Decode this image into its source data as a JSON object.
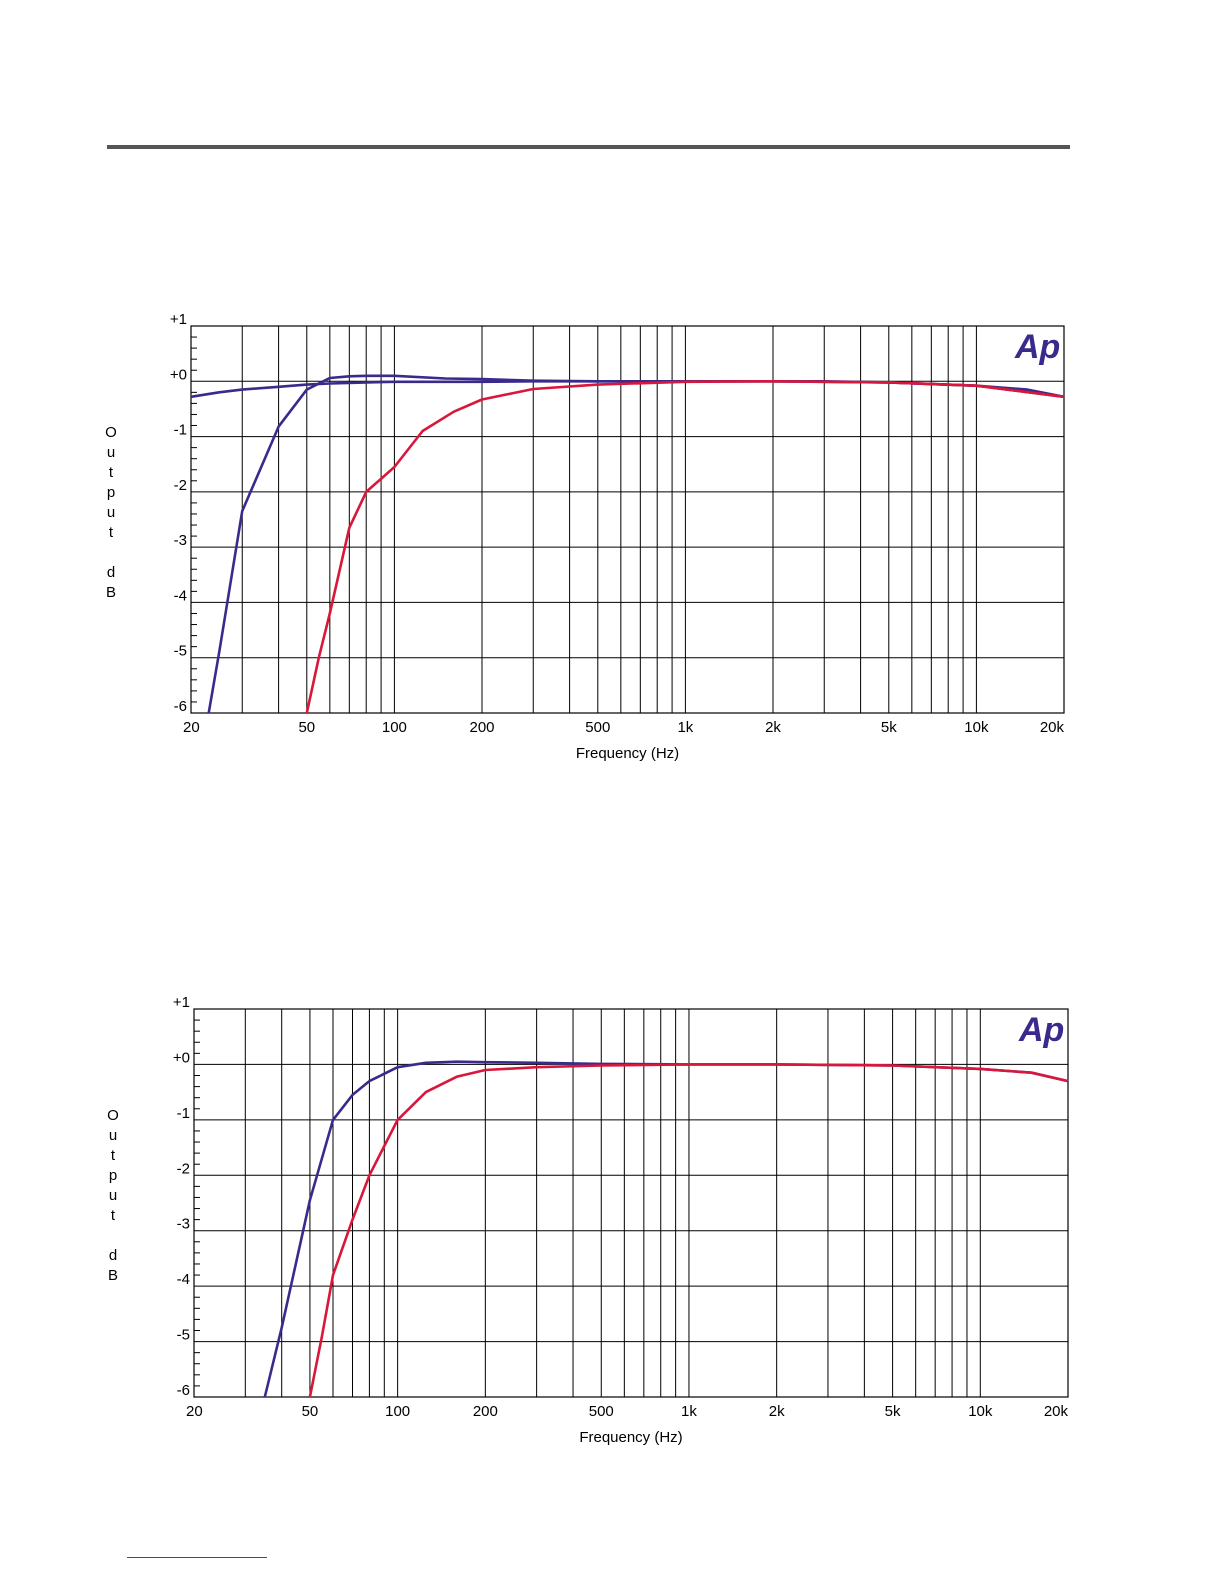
{
  "colors": {
    "grid": "#000000",
    "series_a": "#3b2a8c",
    "series_b": "#d9173a",
    "logo": "#3b2a8c"
  },
  "chart_data": [
    {
      "type": "line",
      "logo_text": "Ap",
      "xscale": "log",
      "xlim": [
        20,
        20000
      ],
      "ylim": [
        -6,
        1
      ],
      "ylabel": "Output dB",
      "xlabel": "Frequency (Hz)",
      "x_ticks": [
        {
          "value": 20,
          "label": "20"
        },
        {
          "value": 50,
          "label": "50"
        },
        {
          "value": 100,
          "label": "100"
        },
        {
          "value": 200,
          "label": "200"
        },
        {
          "value": 500,
          "label": "500"
        },
        {
          "value": 1000,
          "label": "1k"
        },
        {
          "value": 2000,
          "label": "2k"
        },
        {
          "value": 5000,
          "label": "5k"
        },
        {
          "value": 10000,
          "label": "10k"
        },
        {
          "value": 20000,
          "label": "20k"
        }
      ],
      "y_ticks": [
        {
          "value": 1,
          "label": "+1"
        },
        {
          "value": 0,
          "label": "+0"
        },
        {
          "value": -1,
          "label": "-1"
        },
        {
          "value": -2,
          "label": "-2"
        },
        {
          "value": -3,
          "label": "-3"
        },
        {
          "value": -4,
          "label": "-4"
        },
        {
          "value": -5,
          "label": "-5"
        },
        {
          "value": -6,
          "label": "-6"
        }
      ],
      "series": [
        {
          "color": "#3b2a8c",
          "x": [
            20,
            25,
            30,
            40,
            50,
            60,
            70,
            80,
            100,
            150,
            200,
            300,
            500,
            1000,
            2000,
            3000,
            5000,
            7000,
            10000,
            15000,
            20000
          ],
          "y": [
            -0.28,
            -0.2,
            -0.15,
            -0.1,
            -0.06,
            -0.04,
            -0.03,
            -0.02,
            -0.01,
            -0.01,
            -0.01,
            0.0,
            0.0,
            0.0,
            0.0,
            0.0,
            -0.02,
            -0.05,
            -0.08,
            -0.15,
            -0.28
          ]
        },
        {
          "color": "#3b2a8c",
          "x": [
            23,
            25,
            30,
            40,
            50,
            60,
            70,
            80,
            100,
            150,
            200,
            300,
            500,
            1000,
            2000,
            5000,
            10000,
            20000
          ],
          "y": [
            -6.0,
            -4.9,
            -2.35,
            -0.82,
            -0.15,
            0.06,
            0.09,
            0.1,
            0.1,
            0.05,
            0.04,
            0.01,
            0.0,
            0.0,
            0.0,
            -0.02,
            -0.08,
            -0.28
          ]
        },
        {
          "color": "#d9173a",
          "x": [
            50,
            55,
            60,
            70,
            80,
            100,
            125,
            160,
            200,
            300,
            500,
            1000,
            2000,
            5000,
            10000,
            20000
          ],
          "y": [
            -6.0,
            -5.0,
            -4.2,
            -2.65,
            -2.0,
            -1.55,
            -0.9,
            -0.55,
            -0.33,
            -0.14,
            -0.06,
            -0.01,
            0.0,
            -0.02,
            -0.08,
            -0.28
          ]
        }
      ]
    },
    {
      "type": "line",
      "logo_text": "Ap",
      "xscale": "log",
      "xlim": [
        20,
        20000
      ],
      "ylim": [
        -6,
        1
      ],
      "ylabel": "Output dB",
      "xlabel": "Frequency (Hz)",
      "x_ticks": [
        {
          "value": 20,
          "label": "20"
        },
        {
          "value": 50,
          "label": "50"
        },
        {
          "value": 100,
          "label": "100"
        },
        {
          "value": 200,
          "label": "200"
        },
        {
          "value": 500,
          "label": "500"
        },
        {
          "value": 1000,
          "label": "1k"
        },
        {
          "value": 2000,
          "label": "2k"
        },
        {
          "value": 5000,
          "label": "5k"
        },
        {
          "value": 10000,
          "label": "10k"
        },
        {
          "value": 20000,
          "label": "20k"
        }
      ],
      "y_ticks": [
        {
          "value": 1,
          "label": "+1"
        },
        {
          "value": 0,
          "label": "+0"
        },
        {
          "value": -1,
          "label": "-1"
        },
        {
          "value": -2,
          "label": "-2"
        },
        {
          "value": -3,
          "label": "-3"
        },
        {
          "value": -4,
          "label": "-4"
        },
        {
          "value": -5,
          "label": "-5"
        },
        {
          "value": -6,
          "label": "-6"
        }
      ],
      "series": [
        {
          "color": "#3b2a8c",
          "x": [
            35,
            40,
            50,
            60,
            70,
            80,
            100,
            125,
            160,
            200,
            300,
            500,
            1000,
            2000,
            5000,
            10000,
            15000,
            20000
          ],
          "y": [
            -6.0,
            -4.75,
            -2.45,
            -1.0,
            -0.55,
            -0.3,
            -0.05,
            0.03,
            0.05,
            0.04,
            0.03,
            0.01,
            0.0,
            0.0,
            -0.02,
            -0.08,
            -0.15,
            -0.3
          ]
        },
        {
          "color": "#d9173a",
          "x": [
            50,
            55,
            60,
            70,
            80,
            100,
            125,
            160,
            200,
            300,
            500,
            1000,
            2000,
            5000,
            10000,
            15000,
            20000
          ],
          "y": [
            -6.0,
            -4.9,
            -3.8,
            -2.8,
            -2.0,
            -1.0,
            -0.5,
            -0.22,
            -0.1,
            -0.05,
            -0.02,
            0.0,
            0.0,
            -0.02,
            -0.08,
            -0.15,
            -0.3
          ]
        }
      ]
    }
  ]
}
